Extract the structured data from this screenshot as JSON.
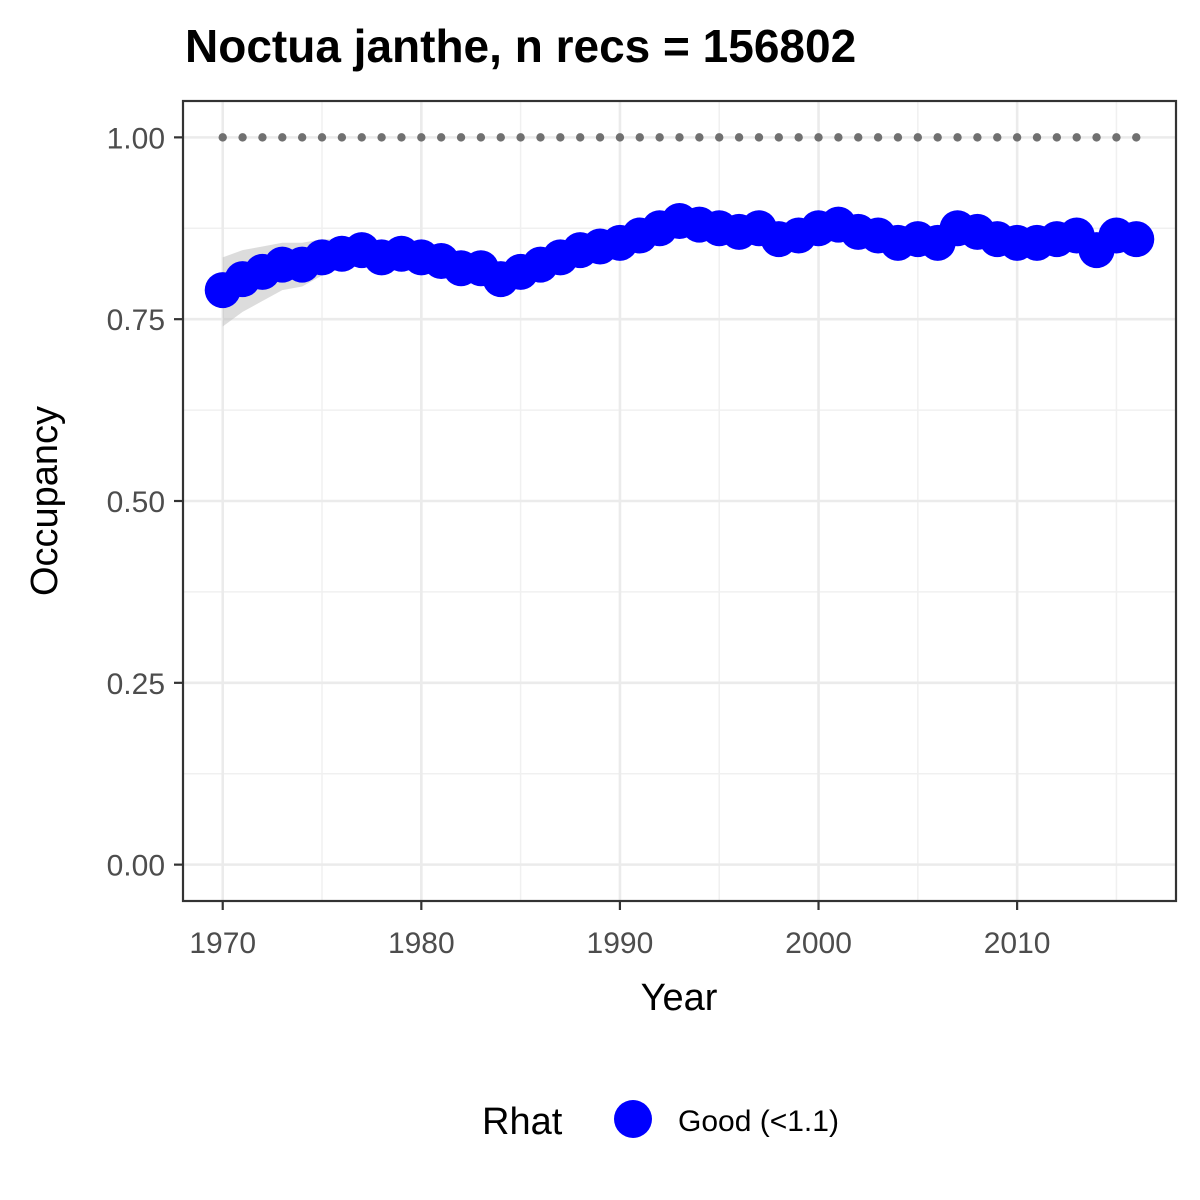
{
  "chart_data": {
    "type": "line",
    "title": "Noctua janthe, n recs = 156802",
    "xlabel": "Year",
    "ylabel": "Occupancy",
    "xlim": [
      1968,
      2018
    ],
    "ylim": [
      -0.05,
      1.05
    ],
    "x_ticks": [
      1970,
      1980,
      1990,
      2000,
      2010
    ],
    "x_tick_labels": [
      "1970",
      "1980",
      "1990",
      "2000",
      "2010"
    ],
    "y_ticks": [
      0,
      0.25,
      0.5,
      0.75,
      1.0
    ],
    "y_tick_labels": [
      "0.00",
      "0.25",
      "0.50",
      "0.75",
      "1.00"
    ],
    "grid": true,
    "legend": {
      "title": "Rhat",
      "position": "bottom",
      "entries": [
        {
          "label": "Good (<1.1)",
          "color": "#0000ff"
        }
      ]
    },
    "series": [
      {
        "name": "Good (<1.1)",
        "color": "#0000ff",
        "x": [
          1970,
          1971,
          1972,
          1973,
          1974,
          1975,
          1976,
          1977,
          1978,
          1979,
          1980,
          1981,
          1982,
          1983,
          1984,
          1985,
          1986,
          1987,
          1988,
          1989,
          1990,
          1991,
          1992,
          1993,
          1994,
          1995,
          1996,
          1997,
          1998,
          1999,
          2000,
          2001,
          2002,
          2003,
          2004,
          2005,
          2006,
          2007,
          2008,
          2009,
          2010,
          2011,
          2012,
          2013,
          2014,
          2015,
          2016
        ],
        "y": [
          0.79,
          0.805,
          0.815,
          0.825,
          0.825,
          0.835,
          0.84,
          0.845,
          0.835,
          0.84,
          0.835,
          0.83,
          0.82,
          0.82,
          0.805,
          0.815,
          0.825,
          0.835,
          0.845,
          0.85,
          0.855,
          0.865,
          0.875,
          0.885,
          0.88,
          0.875,
          0.87,
          0.875,
          0.86,
          0.865,
          0.875,
          0.88,
          0.87,
          0.865,
          0.855,
          0.86,
          0.855,
          0.875,
          0.87,
          0.86,
          0.855,
          0.855,
          0.86,
          0.865,
          0.845,
          0.865,
          0.86
        ],
        "ci_lower": [
          0.74,
          0.76,
          0.775,
          0.79,
          0.795,
          0.81,
          0.82,
          0.825,
          0.82,
          0.825,
          0.82,
          0.815,
          0.805,
          0.8,
          0.78,
          0.8,
          0.815,
          0.825,
          0.835,
          0.84,
          0.845,
          0.855,
          0.865,
          0.875,
          0.87,
          0.865,
          0.86,
          0.865,
          0.85,
          0.855,
          0.865,
          0.87,
          0.86,
          0.855,
          0.845,
          0.85,
          0.845,
          0.865,
          0.86,
          0.85,
          0.845,
          0.845,
          0.85,
          0.855,
          0.835,
          0.855,
          0.85
        ],
        "ci_upper": [
          0.835,
          0.845,
          0.85,
          0.855,
          0.855,
          0.86,
          0.86,
          0.862,
          0.855,
          0.855,
          0.85,
          0.845,
          0.84,
          0.835,
          0.825,
          0.83,
          0.84,
          0.848,
          0.855,
          0.862,
          0.868,
          0.875,
          0.885,
          0.895,
          0.89,
          0.885,
          0.88,
          0.885,
          0.872,
          0.876,
          0.885,
          0.89,
          0.88,
          0.875,
          0.866,
          0.87,
          0.866,
          0.885,
          0.88,
          0.872,
          0.866,
          0.866,
          0.87,
          0.876,
          0.858,
          0.876,
          0.872
        ]
      },
      {
        "name": "",
        "color": "#707070",
        "style": "dotted",
        "x": [
          1970,
          1971,
          1972,
          1973,
          1974,
          1975,
          1976,
          1977,
          1978,
          1979,
          1980,
          1981,
          1982,
          1983,
          1984,
          1985,
          1986,
          1987,
          1988,
          1989,
          1990,
          1991,
          1992,
          1993,
          1994,
          1995,
          1996,
          1997,
          1998,
          1999,
          2000,
          2001,
          2002,
          2003,
          2004,
          2005,
          2006,
          2007,
          2008,
          2009,
          2010,
          2011,
          2012,
          2013,
          2014,
          2015,
          2016
        ],
        "y": [
          1,
          1,
          1,
          1,
          1,
          1,
          1,
          1,
          1,
          1,
          1,
          1,
          1,
          1,
          1,
          1,
          1,
          1,
          1,
          1,
          1,
          1,
          1,
          1,
          1,
          1,
          1,
          1,
          1,
          1,
          1,
          1,
          1,
          1,
          1,
          1,
          1,
          1,
          1,
          1,
          1,
          1,
          1,
          1,
          1,
          1,
          1
        ]
      }
    ]
  }
}
